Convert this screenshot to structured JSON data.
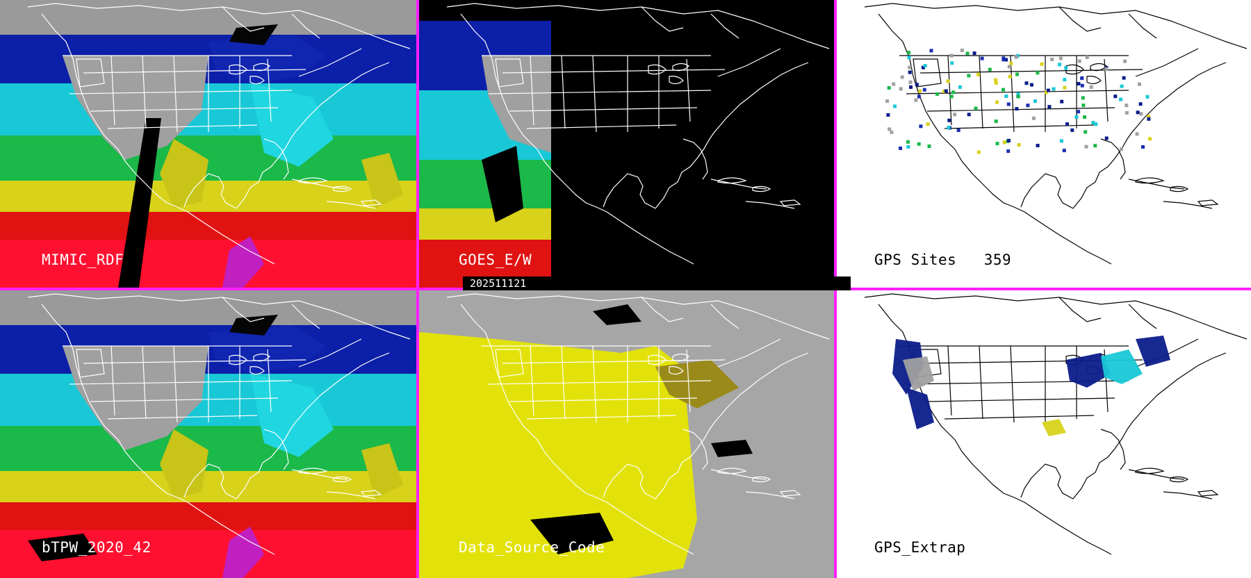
{
  "colors": {
    "border": "#ff20ff",
    "background_dark": "#000000",
    "background_gray": "#a6a6a6",
    "map_lines_on_dark": "#ffffff",
    "map_lines_on_light": "#000000"
  },
  "panels": [
    {
      "label": "MIMIC_RDF",
      "style": "moisture-field"
    },
    {
      "label": "GOES_E/W",
      "style": "satellite-partial"
    },
    {
      "label": "GPS Sites   359",
      "style": "station-points"
    },
    {
      "label": "bTPW_2020_42",
      "style": "moisture-field"
    },
    {
      "label": "Data_Source_Code",
      "style": "source-code"
    },
    {
      "label": "GPS_Extrap",
      "style": "station-extrap"
    }
  ],
  "timestamp": "202511121"
}
